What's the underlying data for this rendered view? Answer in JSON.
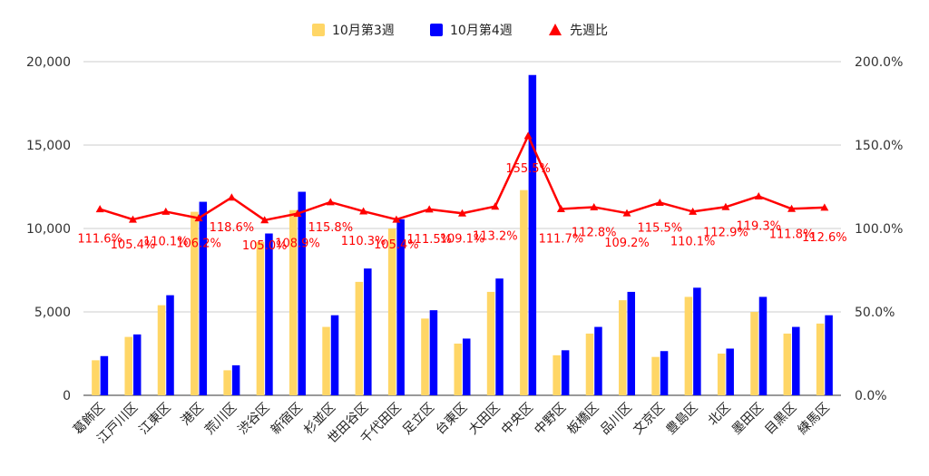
{
  "chart_data": {
    "type": "bar",
    "categories": [
      "葛飾区",
      "江戸川区",
      "江東区",
      "港区",
      "荒川区",
      "渋谷区",
      "新宿区",
      "杉並区",
      "世田谷区",
      "千代田区",
      "足立区",
      "台東区",
      "大田区",
      "中央区",
      "中野区",
      "板橋区",
      "品川区",
      "文京区",
      "豊島区",
      "北区",
      "墨田区",
      "目黒区",
      "練馬区"
    ],
    "series": [
      {
        "name": "10月第3週",
        "type": "bar",
        "axis": "left",
        "color": "#ffd666",
        "values": [
          2100,
          3500,
          5400,
          11000,
          1500,
          9200,
          11100,
          4100,
          6800,
          10000,
          4600,
          3100,
          6200,
          12300,
          2400,
          3700,
          5700,
          2300,
          5900,
          2500,
          5000,
          3700,
          4300
        ]
      },
      {
        "name": "10月第4週",
        "type": "bar",
        "axis": "left",
        "color": "#0000ff",
        "values": [
          2350,
          3650,
          6000,
          11600,
          1800,
          9700,
          12200,
          4800,
          7600,
          10550,
          5100,
          3400,
          7000,
          19200,
          2700,
          4100,
          6200,
          2650,
          6450,
          2800,
          5900,
          4100,
          4800
        ]
      },
      {
        "name": "先週比",
        "type": "line",
        "axis": "right",
        "color": "#ff0000",
        "values": [
          111.6,
          105.4,
          110.1,
          106.2,
          118.6,
          105.0,
          108.9,
          115.8,
          110.3,
          105.4,
          111.5,
          109.1,
          113.2,
          155.5,
          111.7,
          112.8,
          109.2,
          115.5,
          110.1,
          112.9,
          119.3,
          111.8,
          112.6
        ],
        "labels": [
          "111.6%",
          "105.4%",
          "110.1%",
          "106.2%",
          "118.6%",
          "105.0%",
          "108.9%",
          "115.8%",
          "110.3%",
          "105.4%",
          "111.5%",
          "109.1%",
          "113.2%",
          "155.5%",
          "111.7%",
          "112.8%",
          "109.2%",
          "115.5%",
          "110.1%",
          "112.9%",
          "119.3%",
          "111.8%",
          "112.6%"
        ]
      }
    ],
    "y_left": {
      "min": 0,
      "max": 20000,
      "ticks": [
        "0",
        "5,000",
        "10,000",
        "15,000",
        "20,000"
      ]
    },
    "y_right": {
      "min": 0,
      "max": 200,
      "ticks": [
        "0.0%",
        "50.0%",
        "100.0%",
        "150.0%",
        "200.0%"
      ]
    },
    "grid": true,
    "legend_position": "top-center"
  }
}
